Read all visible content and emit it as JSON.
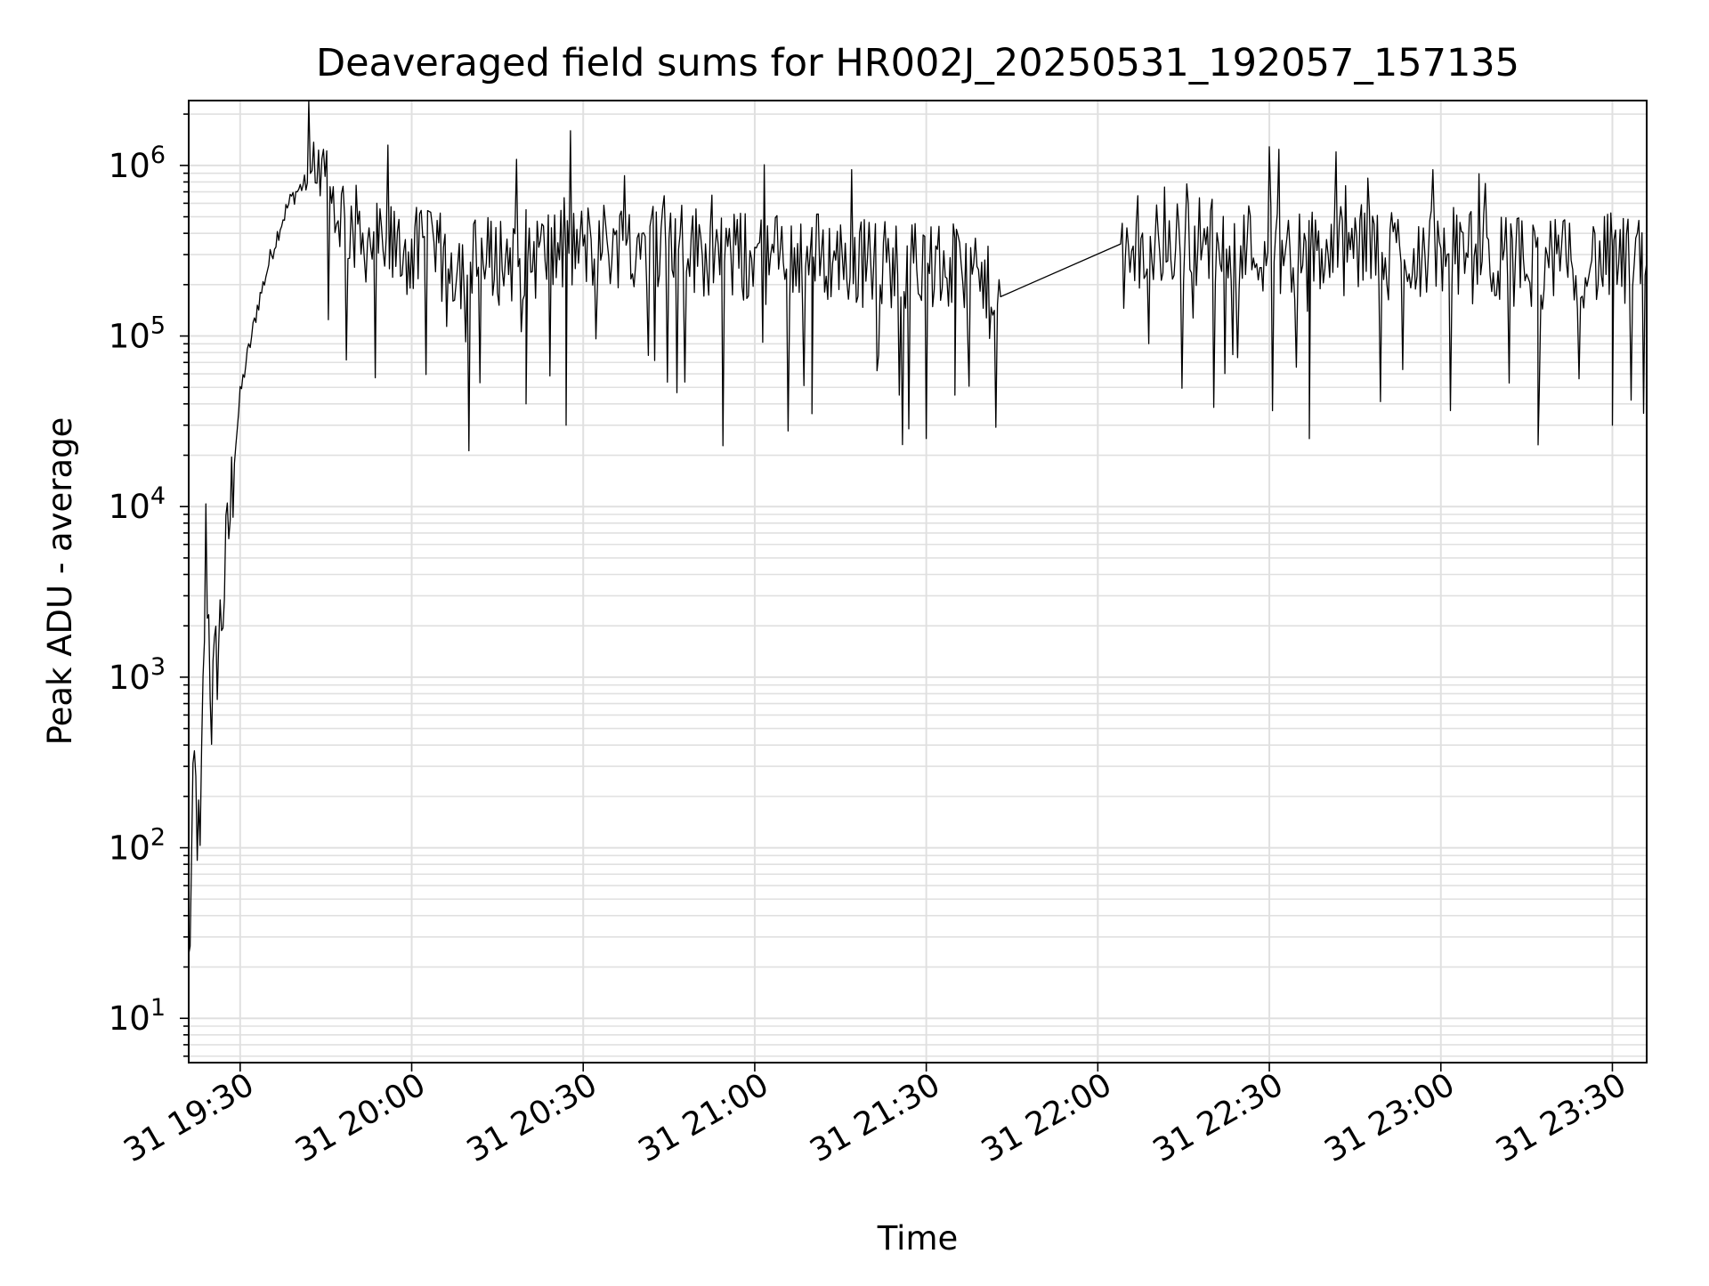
{
  "chart_data": {
    "type": "line",
    "title": "Deaveraged field sums for HR002J_20250531_192057_157135",
    "xlabel": "Time",
    "ylabel": "Peak ADU - average",
    "yscale": "log",
    "ylim": [
      5.5,
      2400000
    ],
    "xlim": [
      "2025-05-31 19:21",
      "2025-05-31 23:36"
    ],
    "xticks": [
      "31 19:30",
      "31 20:00",
      "31 20:30",
      "31 21:00",
      "31 21:30",
      "31 22:00",
      "31 22:30",
      "31 23:00",
      "31 23:30"
    ],
    "yticks": [
      {
        "base": "10",
        "exp": "1"
      },
      {
        "base": "10",
        "exp": "2"
      },
      {
        "base": "10",
        "exp": "3"
      },
      {
        "base": "10",
        "exp": "4"
      },
      {
        "base": "10",
        "exp": "5"
      },
      {
        "base": "10",
        "exp": "6"
      }
    ],
    "grid": true,
    "line_color": "#000000",
    "grid_color": "#e0e0e0",
    "series": [
      {
        "name": "",
        "x": [
          "19:21",
          "19:22",
          "19:23",
          "19:24",
          "19:25",
          "19:26",
          "19:27",
          "19:28",
          "19:29",
          "19:30",
          "19:31",
          "19:32",
          "19:33",
          "19:34",
          "19:35",
          "19:36",
          "19:37",
          "19:38",
          "19:39",
          "19:40",
          "19:41",
          "19:42",
          "19:44",
          "19:46",
          "19:48",
          "19:50",
          "19:52",
          "19:55",
          "20:00",
          "20:05",
          "20:10",
          "20:15",
          "20:20",
          "20:25",
          "20:30",
          "20:35",
          "20:40",
          "20:45",
          "20:50",
          "20:55",
          "21:00",
          "21:05",
          "21:10",
          "21:15",
          "21:20",
          "21:25",
          "21:30",
          "21:35",
          "21:43",
          "22:04",
          "22:10",
          "22:15",
          "22:20",
          "22:25",
          "22:30",
          "22:35",
          "22:40",
          "22:45",
          "22:50",
          "22:55",
          "23:00",
          "23:05",
          "23:10",
          "23:15",
          "23:20",
          "23:25",
          "23:30",
          "23:33",
          "23:36"
        ],
        "values": [
          20,
          300,
          80,
          7000,
          700,
          1500,
          3000,
          8000,
          20000,
          45000,
          70000,
          100000,
          150000,
          200000,
          270000,
          350000,
          450000,
          550000,
          650000,
          720000,
          780000,
          800000,
          750000,
          650000,
          550000,
          450000,
          400000,
          350000,
          330000,
          300000,
          280000,
          300000,
          320000,
          330000,
          350000,
          370000,
          380000,
          360000,
          340000,
          320000,
          300000,
          310000,
          320000,
          300000,
          290000,
          280000,
          270000,
          260000,
          170000,
          260000,
          350000,
          400000,
          380000,
          360000,
          350000,
          320000,
          330000,
          340000,
          350000,
          330000,
          320000,
          310000,
          300000,
          290000,
          280000,
          290000,
          300000,
          280000,
          270000
        ],
        "dips": [
          [
            "20:20",
            40000
          ],
          [
            "20:27",
            30000
          ],
          [
            "21:10",
            35000
          ],
          [
            "21:35",
            45000
          ],
          [
            "22:37",
            25000
          ],
          [
            "23:17",
            23000
          ],
          [
            "23:30",
            30000
          ]
        ]
      }
    ]
  }
}
